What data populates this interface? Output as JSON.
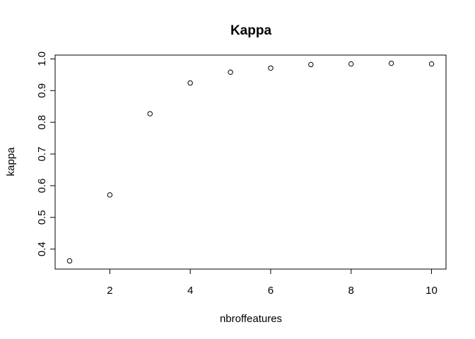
{
  "chart_data": {
    "type": "scatter",
    "title": "Kappa",
    "xlabel": "nbroffeatures",
    "ylabel": "kappa",
    "x": [
      1,
      2,
      3,
      4,
      5,
      6,
      7,
      8,
      9,
      10
    ],
    "y": [
      0.363,
      0.571,
      0.827,
      0.924,
      0.958,
      0.971,
      0.982,
      0.984,
      0.986,
      0.984
    ],
    "xlim": [
      0.64,
      10.36
    ],
    "ylim": [
      0.337,
      1.012
    ],
    "xticks": [
      2,
      4,
      6,
      8,
      10
    ],
    "yticks": [
      0.4,
      0.5,
      0.6,
      0.7,
      0.8,
      0.9,
      1.0
    ],
    "xtick_labels": [
      "2",
      "4",
      "6",
      "8",
      "10"
    ],
    "ytick_labels": [
      "0.4",
      "0.5",
      "0.6",
      "0.7",
      "0.8",
      "0.9",
      "1.0"
    ],
    "grid": false,
    "marker": "open-circle",
    "colors": {
      "point": "#000000",
      "axis": "#000000",
      "background": "#ffffff"
    }
  }
}
